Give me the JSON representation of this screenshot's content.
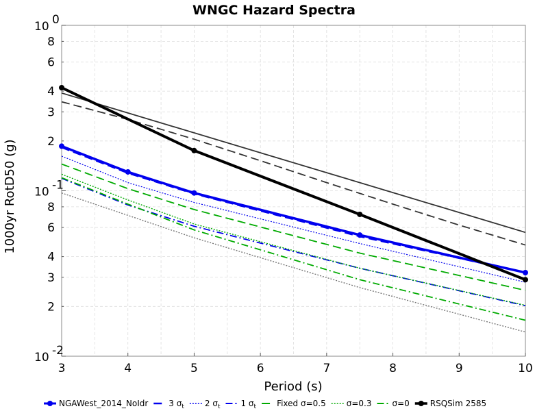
{
  "chart_data": {
    "type": "line",
    "title": "WNGC Hazard Spectra",
    "xlabel": "Period (s)",
    "ylabel": "1000yr RotD50 (g)",
    "xscale": "linear",
    "yscale": "log",
    "xlim": [
      3,
      10
    ],
    "ylim": [
      0.01,
      1
    ],
    "grid": true,
    "legend_position": "bottom",
    "x_ticks": [
      {
        "value": 3,
        "label": "3"
      },
      {
        "value": 4,
        "label": "4"
      },
      {
        "value": 5,
        "label": "5"
      },
      {
        "value": 6,
        "label": "6"
      },
      {
        "value": 7,
        "label": "7"
      },
      {
        "value": 8,
        "label": "8"
      },
      {
        "value": 9,
        "label": "9"
      },
      {
        "value": 10,
        "label": "10"
      }
    ],
    "y_ticks": [
      {
        "value": 0.01,
        "label": "10",
        "sup": "-2",
        "major": true
      },
      {
        "value": 0.02,
        "label": "2",
        "sup": "",
        "major": false
      },
      {
        "value": 0.03,
        "label": "3",
        "sup": "",
        "major": false
      },
      {
        "value": 0.04,
        "label": "4",
        "sup": "",
        "major": false
      },
      {
        "value": 0.06,
        "label": "6",
        "sup": "",
        "major": false
      },
      {
        "value": 0.08,
        "label": "8",
        "sup": "",
        "major": false
      },
      {
        "value": 0.1,
        "label": "10",
        "sup": "-1",
        "major": true
      },
      {
        "value": 0.2,
        "label": "2",
        "sup": "",
        "major": false
      },
      {
        "value": 0.3,
        "label": "3",
        "sup": "",
        "major": false
      },
      {
        "value": 0.4,
        "label": "4",
        "sup": "",
        "major": false
      },
      {
        "value": 0.6,
        "label": "6",
        "sup": "",
        "major": false
      },
      {
        "value": 0.8,
        "label": "8",
        "sup": "",
        "major": false
      },
      {
        "value": 1,
        "label": "10",
        "sup": "0",
        "major": true
      }
    ],
    "series": [
      {
        "name": "",
        "color": "#333333",
        "style": "solid",
        "width": 1.8,
        "markers": false,
        "x": [
          3,
          10
        ],
        "y": [
          0.39,
          0.056
        ]
      },
      {
        "name": "",
        "color": "#333333",
        "style": "dashed",
        "width": 1.8,
        "markers": false,
        "x": [
          3,
          4,
          5,
          6,
          7,
          8,
          9,
          10
        ],
        "y": [
          0.345,
          0.27,
          0.205,
          0.152,
          0.112,
          0.083,
          0.062,
          0.047
        ]
      },
      {
        "name": "NGAWest_2014_NoIdr",
        "color": "#0000ee",
        "style": "solid",
        "width": 3.5,
        "markers": true,
        "x": [
          3,
          4,
          5,
          7.5,
          10
        ],
        "y": [
          0.186,
          0.13,
          0.097,
          0.054,
          0.032
        ]
      },
      {
        "name": "3 σt",
        "color": "#0000ee",
        "style": "dashed",
        "width": 2.5,
        "markers": false,
        "x": [
          3,
          4,
          5,
          7.5,
          10
        ],
        "y": [
          0.183,
          0.128,
          0.096,
          0.053,
          0.032
        ]
      },
      {
        "name": "2 σt",
        "color": "#0000ee",
        "style": "dotted",
        "width": 1.2,
        "markers": false,
        "x": [
          3,
          4,
          5,
          7.5,
          10
        ],
        "y": [
          0.162,
          0.112,
          0.085,
          0.048,
          0.028
        ]
      },
      {
        "name": "1 σt",
        "color": "#0000ee",
        "style": "dashdot",
        "width": 1.8,
        "markers": false,
        "x": [
          3,
          4,
          5,
          7.5,
          10
        ],
        "y": [
          0.119,
          0.082,
          0.061,
          0.034,
          0.0202
        ]
      },
      {
        "name": "Fixed σ=0.5",
        "color": "#00aa00",
        "style": "dashed",
        "width": 1.8,
        "markers": false,
        "x": [
          3,
          4,
          5,
          7.5,
          10
        ],
        "y": [
          0.145,
          0.103,
          0.077,
          0.042,
          0.025
        ]
      },
      {
        "name": "σ=0.3",
        "color": "#00aa00",
        "style": "dotted",
        "width": 1.4,
        "markers": false,
        "x": [
          3,
          4,
          5,
          7.5,
          10
        ],
        "y": [
          0.126,
          0.088,
          0.063,
          0.034,
          0.0203
        ]
      },
      {
        "name": "σ=0",
        "color": "#00aa00",
        "style": "dashdot",
        "width": 1.8,
        "markers": false,
        "x": [
          3,
          4,
          5,
          7.5,
          10
        ],
        "y": [
          0.12,
          0.083,
          0.058,
          0.029,
          0.0165
        ]
      },
      {
        "name": "",
        "color": "#777777",
        "style": "dotted",
        "width": 1.4,
        "markers": false,
        "x": [
          3,
          4,
          5,
          7.5,
          10
        ],
        "y": [
          0.097,
          0.071,
          0.052,
          0.026,
          0.014
        ]
      },
      {
        "name": "RSQSim 2585",
        "color": "#000000",
        "style": "solid",
        "width": 4,
        "markers": true,
        "x": [
          3,
          5,
          7.5,
          10
        ],
        "y": [
          0.42,
          0.175,
          0.072,
          0.029
        ]
      }
    ],
    "legend": [
      {
        "label": "NGAWest_2014_NoIdr",
        "sub": "",
        "color": "#0000ee",
        "style": "solid",
        "width": 3,
        "marker": true
      },
      {
        "label": "3 σ",
        "sub": "t",
        "color": "#0000ee",
        "style": "dashed",
        "width": 2.5,
        "marker": false
      },
      {
        "label": "2 σ",
        "sub": "t",
        "color": "#0000ee",
        "style": "dotted",
        "width": 1.5,
        "marker": false
      },
      {
        "label": "1 σ",
        "sub": "t",
        "color": "#0000ee",
        "style": "dashdot",
        "width": 2,
        "marker": false
      },
      {
        "label": "Fixed σ=0.5",
        "sub": "",
        "color": "#00aa00",
        "style": "dashed",
        "width": 2,
        "marker": false
      },
      {
        "label": "σ=0.3",
        "sub": "",
        "color": "#00aa00",
        "style": "dotted",
        "width": 1.5,
        "marker": false
      },
      {
        "label": "σ=0",
        "sub": "",
        "color": "#00aa00",
        "style": "dashdot",
        "width": 2,
        "marker": false
      },
      {
        "label": "RSQSim 2585",
        "sub": "",
        "color": "#000000",
        "style": "solid",
        "width": 3.5,
        "marker": true
      }
    ]
  }
}
